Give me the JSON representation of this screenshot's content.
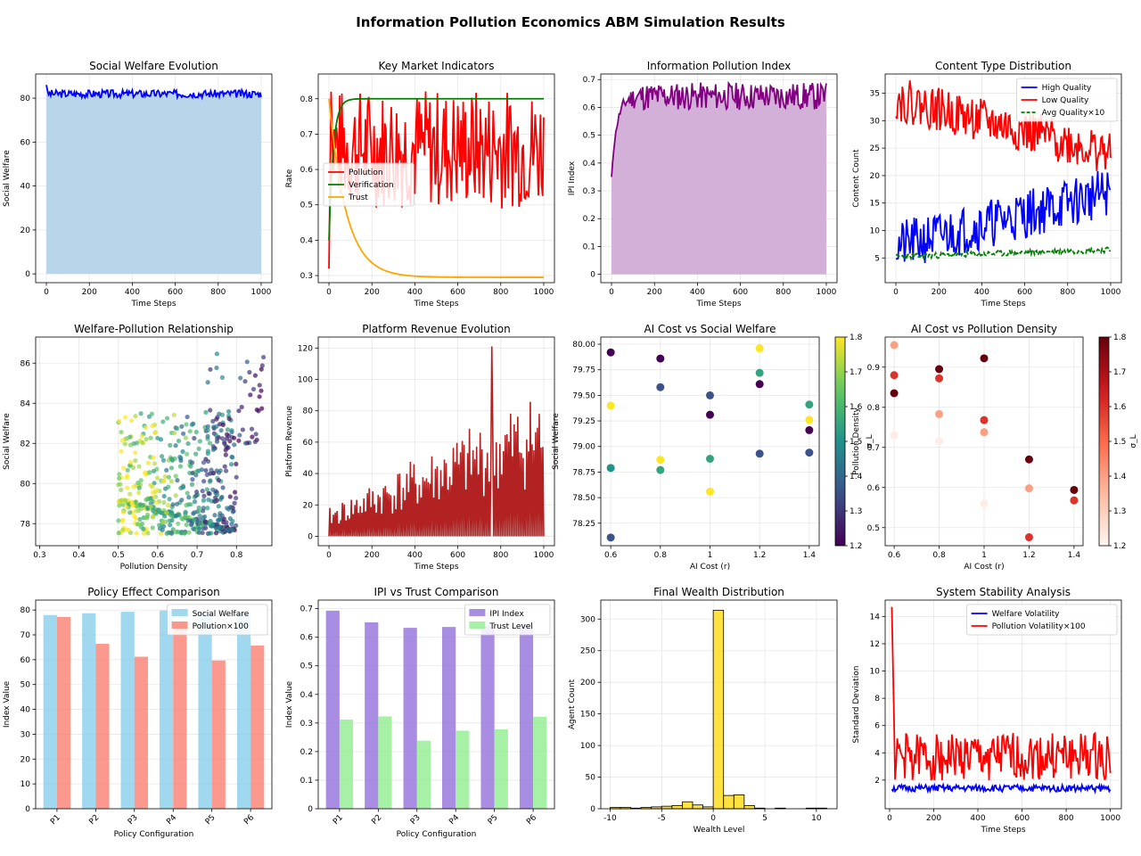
{
  "figure_title": "Information Pollution Economics ABM Simulation Results",
  "chart_data": [
    {
      "id": "welfare",
      "type": "area",
      "title": "Social Welfare Evolution",
      "xlabel": "Time Steps",
      "ylabel": "Social Welfare",
      "xlim": [
        -50,
        1050
      ],
      "ylim": [
        -4,
        91
      ],
      "xticks": [
        0,
        200,
        400,
        600,
        800,
        1000
      ],
      "yticks": [
        0,
        20,
        40,
        60,
        80
      ],
      "series": [
        {
          "name": "Social Welfare",
          "color": "#0000ff",
          "fill": "#b9d5ea",
          "base": 82,
          "amp": 1.8,
          "start": 86,
          "seed": 3
        }
      ]
    },
    {
      "id": "indicators",
      "type": "line",
      "title": "Key Market Indicators",
      "xlabel": "Time Steps",
      "ylabel": "Rate",
      "xlim": [
        -50,
        1050
      ],
      "ylim": [
        0.28,
        0.87
      ],
      "xticks": [
        0,
        200,
        400,
        600,
        800,
        1000
      ],
      "yticks": [
        0.3,
        0.4,
        0.5,
        0.6,
        0.7,
        0.8
      ],
      "legend": {
        "position": "center-left",
        "entries": [
          "Pollution",
          "Verification",
          "Trust"
        ]
      },
      "series": [
        {
          "name": "Pollution",
          "color": "#ff0000",
          "kind": "noisy",
          "start": 0.32,
          "base": 0.66,
          "amp": 0.17,
          "seed": 7
        },
        {
          "name": "Verification",
          "color": "#008000",
          "kind": "saturate",
          "start": 0.4,
          "end": 0.8,
          "tau": 20
        },
        {
          "name": "Trust",
          "color": "#ffa500",
          "kind": "decay",
          "start": 0.8,
          "end": 0.295,
          "tau": 80
        }
      ]
    },
    {
      "id": "ipi",
      "type": "area",
      "title": "Information Pollution Index",
      "xlabel": "Time Steps",
      "ylabel": "IPI Index",
      "xlim": [
        -50,
        1050
      ],
      "ylim": [
        -0.03,
        0.72
      ],
      "xticks": [
        0,
        200,
        400,
        600,
        800,
        1000
      ],
      "yticks": [
        0.0,
        0.1,
        0.2,
        0.3,
        0.4,
        0.5,
        0.6,
        0.7
      ],
      "series": [
        {
          "name": "IPI Index",
          "color": "#800080",
          "fill": "#d2b0d8",
          "base": 0.64,
          "amp": 0.05,
          "start": 0.35,
          "tau": 25,
          "seed": 11
        }
      ]
    },
    {
      "id": "content",
      "type": "line",
      "title": "Content Type Distribution",
      "xlabel": "Time Steps",
      "ylabel": "Content Count",
      "xlim": [
        -50,
        1050
      ],
      "ylim": [
        0.5,
        38.5
      ],
      "xticks": [
        0,
        200,
        400,
        600,
        800,
        1000
      ],
      "yticks": [
        5,
        10,
        15,
        20,
        25,
        30,
        35
      ],
      "legend": {
        "position": "top-right",
        "entries": [
          "High Quality",
          "Low Quality",
          "Avg Quality×10"
        ]
      },
      "series": [
        {
          "name": "High Quality",
          "color": "#0000ff",
          "kind": "trend",
          "from": 7,
          "to": 17,
          "amp": 4.5,
          "seed": 21
        },
        {
          "name": "Low Quality",
          "color": "#ff0000",
          "kind": "trend",
          "from": 34,
          "to": 24,
          "amp": 4,
          "seed": 22
        },
        {
          "name": "Avg Quality×10",
          "color": "#008000",
          "kind": "trend",
          "dashed": true,
          "from": 5.2,
          "to": 6.5,
          "amp": 0.5,
          "seed": 23
        }
      ]
    },
    {
      "id": "welfare_pollution",
      "type": "scatter",
      "title": "Welfare-Pollution Relationship",
      "xlabel": "Pollution Density",
      "ylabel": "Social Welfare",
      "xlim": [
        0.29,
        0.89
      ],
      "ylim": [
        76.9,
        87.3
      ],
      "xticks": [
        0.3,
        0.4,
        0.5,
        0.6,
        0.7,
        0.8
      ],
      "yticks": [
        78,
        80,
        82,
        84,
        86
      ],
      "colormap": "viridis",
      "clusters": [
        {
          "n": 420,
          "x": [
            0.5,
            0.8
          ],
          "y": [
            77.5,
            83.5
          ],
          "seed": 31
        },
        {
          "n": 130,
          "band": true,
          "x": [
            0.5,
            0.8
          ],
          "y": [
            79.1,
            77.5
          ],
          "seed": 32
        },
        {
          "n": 60,
          "x": [
            0.72,
            0.87
          ],
          "y": [
            82.0,
            86.7
          ],
          "seed": 33
        }
      ]
    },
    {
      "id": "revenue",
      "type": "line",
      "title": "Platform Revenue Evolution",
      "xlabel": "Time Steps",
      "ylabel": "Platform Revenue",
      "xlim": [
        -50,
        1050
      ],
      "ylim": [
        -6,
        127
      ],
      "xticks": [
        0,
        200,
        400,
        600,
        800,
        1000
      ],
      "yticks": [
        0,
        20,
        40,
        60,
        80,
        100,
        120
      ],
      "series": [
        {
          "name": "Platform Revenue",
          "color": "#b22222",
          "kind": "spiky",
          "from": 15,
          "to": 80,
          "peak": 121,
          "seed": 41
        }
      ]
    },
    {
      "id": "ai_welfare",
      "type": "scatter",
      "title": "AI Cost vs Social Welfare",
      "xlabel": "AI Cost (r)",
      "ylabel": "Social Welfare",
      "xlim": [
        0.56,
        1.44
      ],
      "ylim": [
        78.03,
        80.07
      ],
      "xticks": [
        0.6,
        0.8,
        1.0,
        1.2,
        1.4
      ],
      "yticks": [
        78.25,
        78.5,
        78.75,
        79.0,
        79.25,
        79.5,
        79.75,
        80.0
      ],
      "colormap": "viridis",
      "colorbar": {
        "label": "σ_L",
        "range": [
          1.2,
          1.8
        ],
        "ticks": [
          1.2,
          1.3,
          1.4,
          1.5,
          1.6,
          1.7,
          1.8
        ]
      },
      "points": [
        {
          "x": 0.6,
          "y": 79.92,
          "c": 1.2
        },
        {
          "x": 0.6,
          "y": 79.4,
          "c": 1.8
        },
        {
          "x": 0.6,
          "y": 78.79,
          "c": 1.5
        },
        {
          "x": 0.6,
          "y": 78.11,
          "c": 1.35
        },
        {
          "x": 0.8,
          "y": 79.86,
          "c": 1.2
        },
        {
          "x": 0.8,
          "y": 79.58,
          "c": 1.35
        },
        {
          "x": 0.8,
          "y": 78.87,
          "c": 1.8
        },
        {
          "x": 0.8,
          "y": 78.77,
          "c": 1.55
        },
        {
          "x": 1.0,
          "y": 79.5,
          "c": 1.35
        },
        {
          "x": 1.0,
          "y": 79.31,
          "c": 1.2
        },
        {
          "x": 1.0,
          "y": 78.88,
          "c": 1.55
        },
        {
          "x": 1.0,
          "y": 78.56,
          "c": 1.8
        },
        {
          "x": 1.2,
          "y": 79.96,
          "c": 1.8
        },
        {
          "x": 1.2,
          "y": 79.72,
          "c": 1.55
        },
        {
          "x": 1.2,
          "y": 79.61,
          "c": 1.2
        },
        {
          "x": 1.2,
          "y": 78.93,
          "c": 1.35
        },
        {
          "x": 1.4,
          "y": 79.41,
          "c": 1.55
        },
        {
          "x": 1.4,
          "y": 79.26,
          "c": 1.8
        },
        {
          "x": 1.4,
          "y": 79.16,
          "c": 1.2
        },
        {
          "x": 1.4,
          "y": 78.94,
          "c": 1.35
        }
      ]
    },
    {
      "id": "ai_pollution",
      "type": "scatter",
      "title": "AI Cost vs Pollution Density",
      "xlabel": "AI Cost (r)",
      "ylabel": "Pollution Density",
      "xlim": [
        0.56,
        1.44
      ],
      "ylim": [
        0.455,
        0.975
      ],
      "xticks": [
        0.6,
        0.8,
        1.0,
        1.2,
        1.4
      ],
      "yticks": [
        0.5,
        0.6,
        0.7,
        0.8,
        0.9
      ],
      "colormap": "reds",
      "colorbar": {
        "label": "σ_L",
        "range": [
          1.2,
          1.8
        ],
        "ticks": [
          1.2,
          1.3,
          1.4,
          1.5,
          1.6,
          1.7,
          1.8
        ]
      },
      "points": [
        {
          "x": 0.6,
          "y": 0.955,
          "c": 1.4
        },
        {
          "x": 0.6,
          "y": 0.88,
          "c": 1.6
        },
        {
          "x": 0.6,
          "y": 0.835,
          "c": 1.8
        },
        {
          "x": 0.6,
          "y": 0.73,
          "c": 1.22
        },
        {
          "x": 0.8,
          "y": 0.895,
          "c": 1.8
        },
        {
          "x": 0.8,
          "y": 0.872,
          "c": 1.6
        },
        {
          "x": 0.8,
          "y": 0.783,
          "c": 1.4
        },
        {
          "x": 0.8,
          "y": 0.715,
          "c": 1.22
        },
        {
          "x": 1.0,
          "y": 0.922,
          "c": 1.8
        },
        {
          "x": 1.0,
          "y": 0.768,
          "c": 1.6
        },
        {
          "x": 1.0,
          "y": 0.738,
          "c": 1.4
        },
        {
          "x": 1.0,
          "y": 0.56,
          "c": 1.22
        },
        {
          "x": 1.2,
          "y": 0.67,
          "c": 1.8
        },
        {
          "x": 1.2,
          "y": 0.598,
          "c": 1.4
        },
        {
          "x": 1.2,
          "y": 0.476,
          "c": 1.6
        },
        {
          "x": 1.4,
          "y": 0.594,
          "c": 1.8
        },
        {
          "x": 1.4,
          "y": 0.568,
          "c": 1.6
        }
      ]
    },
    {
      "id": "policy",
      "type": "bar",
      "title": "Policy Effect Comparison",
      "xlabel": "Policy Configuration",
      "ylabel": "Index Value",
      "ylim": [
        0,
        84
      ],
      "yticks": [
        0,
        10,
        20,
        30,
        40,
        50,
        60,
        70,
        80
      ],
      "categories": [
        "P1",
        "P2",
        "P3",
        "P4",
        "P5",
        "P6"
      ],
      "legend": {
        "position": "top-right",
        "entries": [
          "Social Welfare",
          "Pollution×100"
        ]
      },
      "series": [
        {
          "name": "Social Welfare",
          "color": "#87ceeb",
          "values": [
            78.0,
            78.7,
            79.3,
            79.8,
            79.0,
            78.6
          ]
        },
        {
          "name": "Pollution×100",
          "color": "#fa8072",
          "values": [
            77.2,
            66.4,
            61.2,
            75.3,
            59.7,
            65.7
          ]
        }
      ]
    },
    {
      "id": "ipi_trust",
      "type": "bar",
      "title": "IPI vs Trust Comparison",
      "xlabel": "Policy Configuration",
      "ylabel": "Index Value",
      "ylim": [
        0,
        0.73
      ],
      "yticks": [
        0.0,
        0.1,
        0.2,
        0.3,
        0.4,
        0.5,
        0.6,
        0.7
      ],
      "categories": [
        "P1",
        "P2",
        "P3",
        "P4",
        "P5",
        "P6"
      ],
      "legend": {
        "position": "top-right",
        "entries": [
          "IPI Index",
          "Trust Level"
        ]
      },
      "series": [
        {
          "name": "IPI Index",
          "color": "#9370db",
          "values": [
            0.693,
            0.652,
            0.633,
            0.636,
            0.64,
            0.645
          ]
        },
        {
          "name": "Trust Level",
          "color": "#90ee90",
          "values": [
            0.312,
            0.323,
            0.238,
            0.273,
            0.278,
            0.322
          ]
        }
      ]
    },
    {
      "id": "wealth",
      "type": "bar",
      "title": "Final Wealth Distribution",
      "xlabel": "Wealth Level",
      "ylabel": "Agent Count",
      "xlim": [
        -10.9,
        12.0
      ],
      "ylim": [
        0,
        330
      ],
      "xticks": [
        -10,
        -5,
        0,
        5,
        10
      ],
      "yticks": [
        0,
        50,
        100,
        150,
        200,
        250,
        300
      ],
      "color": "#ffd700",
      "bins": [
        {
          "from": -10.0,
          "count": 2
        },
        {
          "from": -9.0,
          "count": 2
        },
        {
          "from": -8.0,
          "count": 1
        },
        {
          "from": -7.0,
          "count": 2
        },
        {
          "from": -6.0,
          "count": 3
        },
        {
          "from": -5.0,
          "count": 4
        },
        {
          "from": -4.0,
          "count": 5
        },
        {
          "from": -3.0,
          "count": 11
        },
        {
          "from": -2.0,
          "count": 6
        },
        {
          "from": -1.0,
          "count": 3
        },
        {
          "from": 0.0,
          "count": 314
        },
        {
          "from": 1.0,
          "count": 21
        },
        {
          "from": 2.0,
          "count": 22
        },
        {
          "from": 3.0,
          "count": 5
        },
        {
          "from": 4.0,
          "count": 1
        },
        {
          "from": 6.0,
          "count": 1
        },
        {
          "from": 9.0,
          "count": 1
        },
        {
          "from": 10.0,
          "count": 1
        }
      ]
    },
    {
      "id": "stability",
      "type": "line",
      "title": "System Stability Analysis",
      "xlabel": "Time Steps",
      "ylabel": "Standard Deviation",
      "xlim": [
        -20,
        1050
      ],
      "ylim": [
        -0.1,
        15.2
      ],
      "xticks": [
        0,
        200,
        400,
        600,
        800,
        1000
      ],
      "yticks": [
        2,
        4,
        6,
        8,
        10,
        12,
        14
      ],
      "legend": {
        "position": "top-right",
        "entries": [
          "Welfare Volatility",
          "Pollution Volatility×100"
        ]
      },
      "series": [
        {
          "name": "Welfare Volatility",
          "color": "#0000ff",
          "kind": "vol",
          "base": 1.3,
          "amp": 0.5,
          "seed": 51
        },
        {
          "name": "Pollution Volatility×100",
          "color": "#ff0000",
          "kind": "vol",
          "base": 3.0,
          "amp": 3.5,
          "start": 14.7,
          "seed": 52
        }
      ]
    }
  ]
}
